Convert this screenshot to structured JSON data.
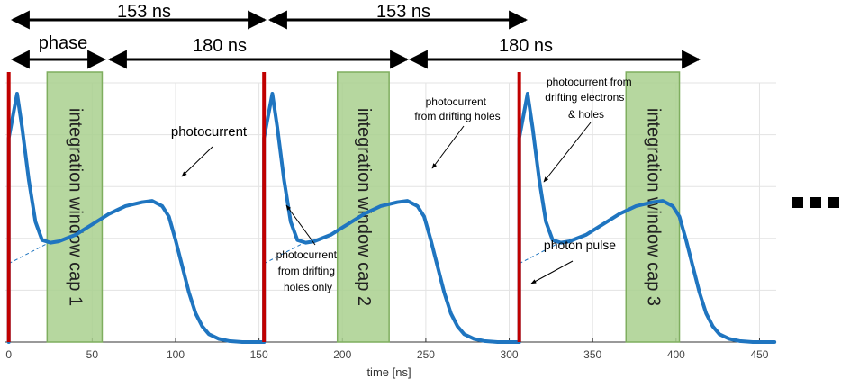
{
  "dimensions": {
    "row1_label_1": "153 ns",
    "row1_label_2": "153 ns",
    "row2_label_phase": "phase",
    "row2_label_1": "180 ns",
    "row2_label_2": "180 ns"
  },
  "windows": [
    {
      "label": "integration window cap 1",
      "t_start": 23,
      "t_end": 56
    },
    {
      "label": "integration window cap 2",
      "t_start": 197,
      "t_end": 228
    },
    {
      "label": "integration window cap 3",
      "t_start": 370,
      "t_end": 402
    }
  ],
  "annotations": {
    "photocurrent": "photocurrent",
    "holes_label": [
      "photocurrent",
      "from drifting holes"
    ],
    "holes_only": [
      "photocurrent",
      "from drifting",
      "holes only"
    ],
    "electrons_holes": [
      "photocurrent  from",
      "drifting electrons",
      "& holes"
    ],
    "photon_pulse": "photon pulse"
  },
  "ellipsis": "...",
  "colors": {
    "window_fill": "#a9d08e",
    "window_stroke": "#7fae5f",
    "curve": "#1f75c0",
    "pulse": "#c00000",
    "grid": "#e3e3e3"
  },
  "chart_data": {
    "type": "line",
    "xlabel": "time [ns]",
    "xlim": [
      -2,
      460
    ],
    "ylim": [
      0,
      1
    ],
    "xticks": [
      0,
      50,
      100,
      150,
      200,
      250,
      300,
      350,
      400,
      450
    ],
    "photon_pulses_ns": [
      0,
      153,
      306
    ],
    "series": [
      {
        "name": "photocurrent",
        "period_ns": 153,
        "x": [
          0,
          2,
          5,
          8,
          12,
          16,
          20,
          25,
          30,
          40,
          50,
          60,
          70,
          80,
          86,
          92,
          96,
          100,
          104,
          108,
          112,
          116,
          120,
          126,
          132,
          140,
          153
        ],
        "y": [
          0.0,
          0.78,
          0.95,
          0.82,
          0.62,
          0.46,
          0.39,
          0.38,
          0.385,
          0.41,
          0.45,
          0.49,
          0.52,
          0.535,
          0.54,
          0.52,
          0.48,
          0.39,
          0.29,
          0.19,
          0.11,
          0.06,
          0.03,
          0.012,
          0.004,
          0.0,
          0.0
        ]
      }
    ],
    "extrapolation": {
      "name": "dashed extrapolation",
      "x": [
        0,
        24
      ],
      "y": [
        0.3,
        0.38
      ]
    }
  }
}
